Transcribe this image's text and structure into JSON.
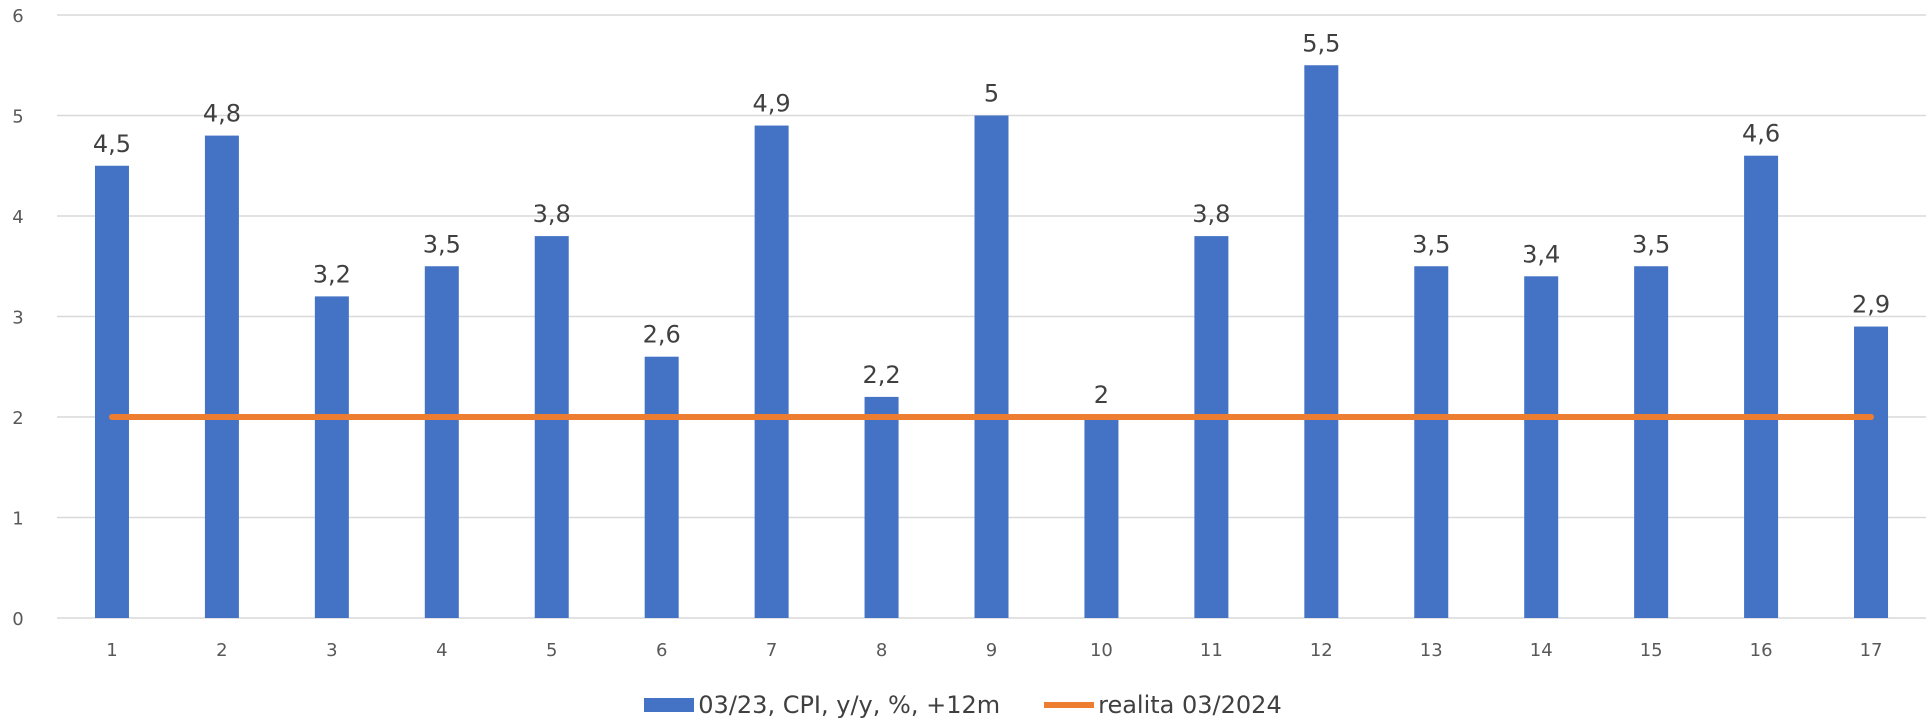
{
  "chart_data": {
    "type": "bar",
    "categories": [
      "1",
      "2",
      "3",
      "4",
      "5",
      "6",
      "7",
      "8",
      "9",
      "10",
      "11",
      "12",
      "13",
      "14",
      "15",
      "16",
      "17"
    ],
    "series": [
      {
        "name": "03/23, CPI, y/y, %, +12m",
        "type": "bar",
        "values": [
          4.5,
          4.8,
          3.2,
          3.5,
          3.8,
          2.6,
          4.9,
          2.2,
          5,
          2,
          3.8,
          5.5,
          3.5,
          3.4,
          3.5,
          4.6,
          2.9
        ],
        "value_labels": [
          "4,5",
          "4,8",
          "3,2",
          "3,5",
          "3,8",
          "2,6",
          "4,9",
          "2,2",
          "5",
          "2",
          "3,8",
          "5,5",
          "3,5",
          "3,4",
          "3,5",
          "4,6",
          "2,9"
        ],
        "color": "#4472C4"
      },
      {
        "name": "realita 03/2024",
        "type": "line",
        "values": [
          2,
          2,
          2,
          2,
          2,
          2,
          2,
          2,
          2,
          2,
          2,
          2,
          2,
          2,
          2,
          2,
          2
        ],
        "color": "#ED7D31"
      }
    ],
    "ylim": [
      0,
      6
    ],
    "yticks": [
      "0",
      "1",
      "2",
      "3",
      "4",
      "5",
      "6"
    ],
    "grid": true,
    "legend_position": "bottom",
    "axis_text_color": "#595959",
    "grid_color": "#D9D9D9",
    "label_color": "#404040"
  }
}
